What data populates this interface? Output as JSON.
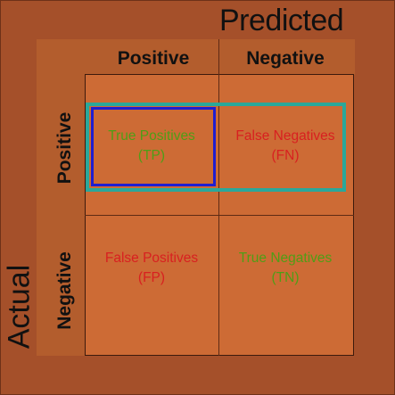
{
  "diagram": {
    "predicted_title": "Predicted",
    "actual_title": "Actual",
    "columns": [
      "Positive",
      "Negative"
    ],
    "rows": [
      "Positive",
      "Negative"
    ],
    "cells": [
      {
        "line1": "True Positives",
        "line2": "(TP)",
        "color": "#4f9e16"
      },
      {
        "line1": "False Negatives",
        "line2": "(FN)",
        "color": "#d82020"
      },
      {
        "line1": "False Positives",
        "line2": "(FP)",
        "color": "#d82020"
      },
      {
        "line1": "True Negatives",
        "line2": "(TN)",
        "color": "#4f9e16"
      }
    ],
    "colors": {
      "background": "#a5502a",
      "band": "#b35d2d",
      "cell": "#cd6b35",
      "highlight_row": "#2aa89a",
      "highlight_cell": "#1f1ed0"
    }
  }
}
